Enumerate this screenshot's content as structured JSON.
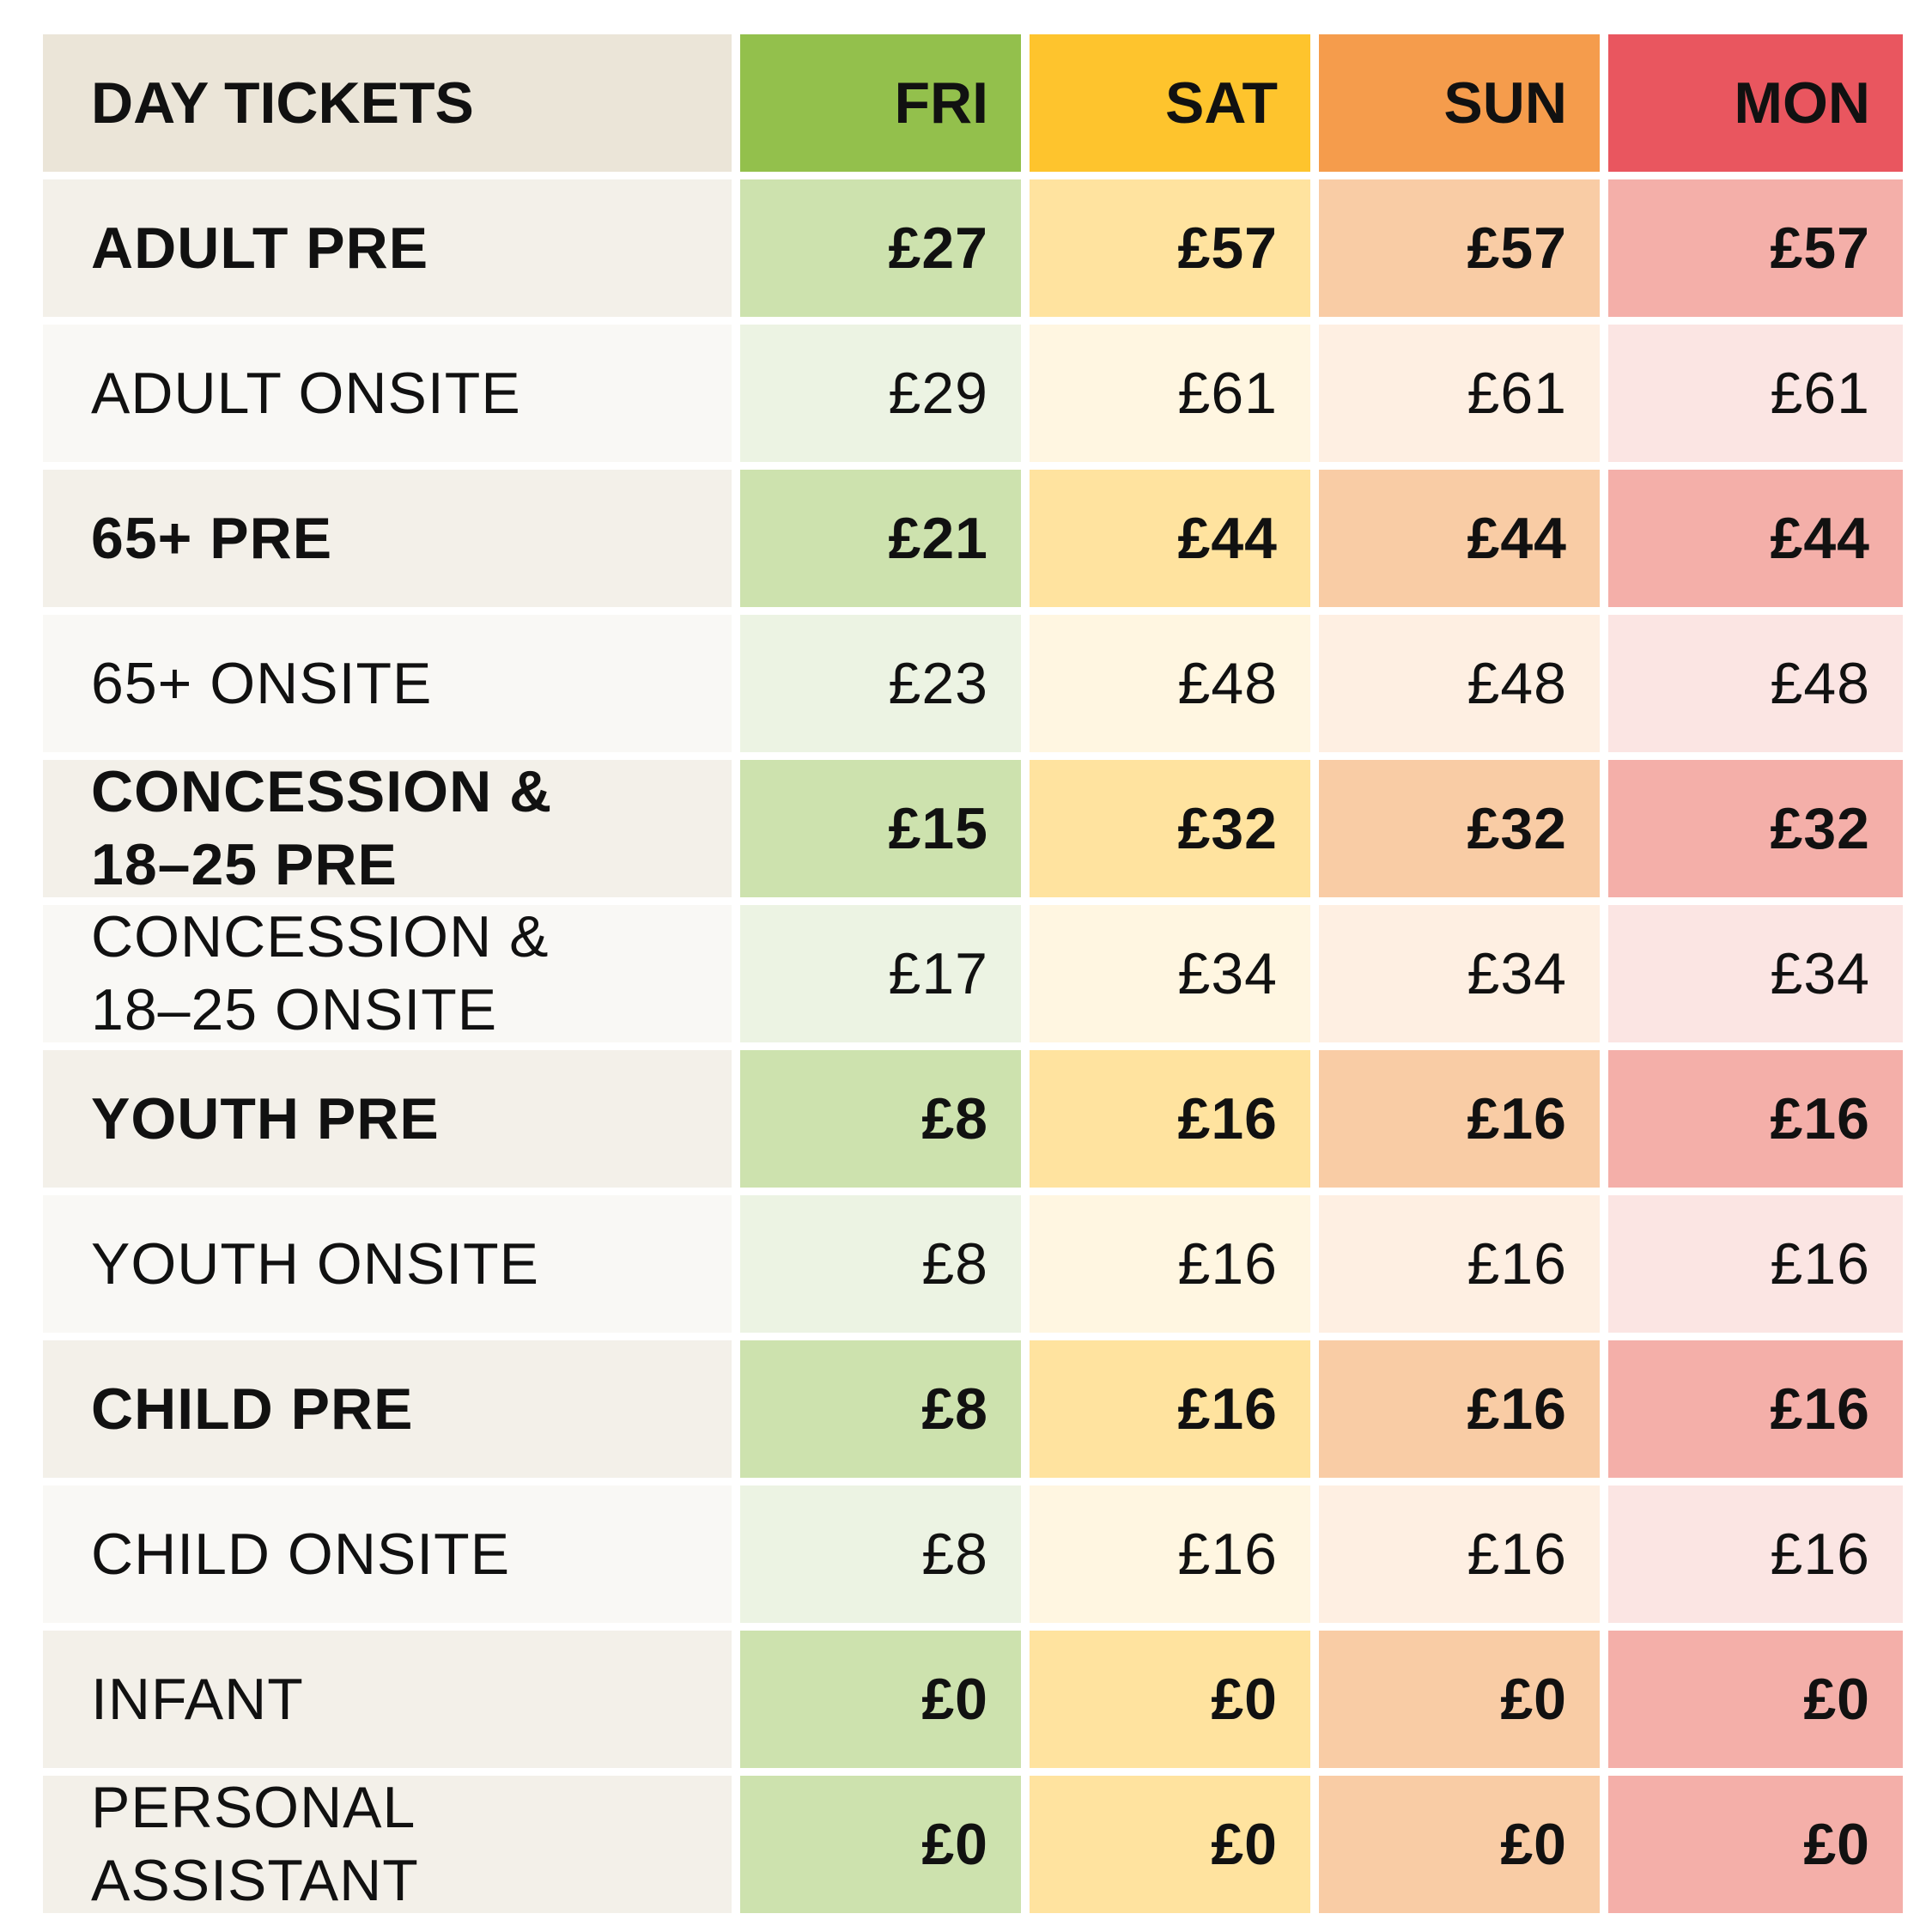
{
  "table": {
    "header": {
      "label": "DAY TICKETS",
      "days": [
        "FRI",
        "SAT",
        "SUN",
        "MON"
      ]
    },
    "colors": {
      "fri": "#93c04c",
      "sat": "#fec42d",
      "sun": "#f59c4c",
      "mon": "#e9565f"
    },
    "rows": [
      {
        "label": "ADULT PRE",
        "prices": [
          "£27",
          "£57",
          "£57",
          "£57"
        ]
      },
      {
        "label": "ADULT ONSITE",
        "prices": [
          "£29",
          "£61",
          "£61",
          "£61"
        ]
      },
      {
        "label": "65+ PRE",
        "prices": [
          "£21",
          "£44",
          "£44",
          "£44"
        ]
      },
      {
        "label": "65+ ONSITE",
        "prices": [
          "£23",
          "£48",
          "£48",
          "£48"
        ]
      },
      {
        "label_line1": "CONCESSION &",
        "label_line2": "18–25 PRE",
        "prices": [
          "£15",
          "£32",
          "£32",
          "£32"
        ]
      },
      {
        "label_line1": "CONCESSION &",
        "label_line2": "18–25 ONSITE",
        "prices": [
          "£17",
          "£34",
          "£34",
          "£34"
        ]
      },
      {
        "label": "YOUTH PRE",
        "prices": [
          "£8",
          "£16",
          "£16",
          "£16"
        ]
      },
      {
        "label": "YOUTH ONSITE",
        "prices": [
          "£8",
          "£16",
          "£16",
          "£16"
        ]
      },
      {
        "label": "CHILD PRE",
        "prices": [
          "£8",
          "£16",
          "£16",
          "£16"
        ]
      },
      {
        "label": "CHILD ONSITE",
        "prices": [
          "£8",
          "£16",
          "£16",
          "£16"
        ]
      },
      {
        "label": "INFANT",
        "prices": [
          "£0",
          "£0",
          "£0",
          "£0"
        ]
      },
      {
        "label": "PERSONAL ASSISTANT",
        "prices": [
          "£0",
          "£0",
          "£0",
          "£0"
        ]
      }
    ]
  }
}
